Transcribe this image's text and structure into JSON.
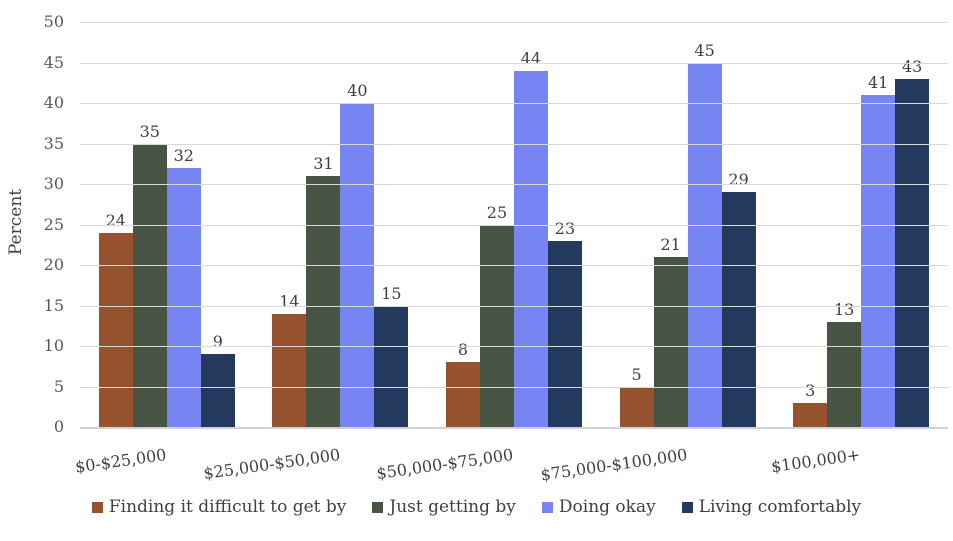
{
  "chart_data": {
    "type": "bar",
    "ylabel": "Percent",
    "ylim": [
      0,
      50
    ],
    "ytick_step": 5,
    "grid": true,
    "legend_position": "bottom",
    "value_labels": true,
    "categories": [
      "$0-$25,000",
      "$25,000-$50,000",
      "$50,000-$75,000",
      "$75,000-$100,000",
      "$100,000+"
    ],
    "series": [
      {
        "name": "Finding it difficult to get by",
        "color": "#96522F",
        "values": [
          24,
          14,
          8,
          5,
          3
        ]
      },
      {
        "name": "Just getting by",
        "color": "#475443",
        "values": [
          35,
          31,
          25,
          21,
          13
        ]
      },
      {
        "name": "Doing okay",
        "color": "#7685F2",
        "values": [
          32,
          40,
          44,
          45,
          41
        ]
      },
      {
        "name": "Living comfortably",
        "color": "#233A5E",
        "values": [
          9,
          15,
          23,
          29,
          43
        ]
      }
    ],
    "style_colors": {
      "gridline": "#d9d9d9",
      "baseline": "#d2d2d2",
      "tick_text": "#595959",
      "label_text": "#3f3f3f",
      "background": "#ffffff"
    }
  }
}
